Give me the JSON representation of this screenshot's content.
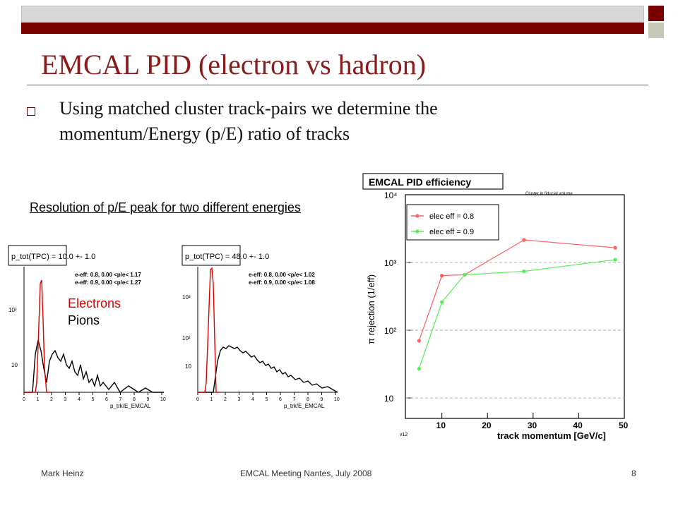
{
  "header": {
    "title": "EMCAL PID (electron vs hadron)",
    "bullet": "Using matched cluster track-pairs we determine the momentum/Energy (p/E) ratio of tracks",
    "colors": {
      "dark_band": "#7a0000",
      "light_band": "#d8d8d8",
      "title": "#8b1a1a"
    }
  },
  "left_panel": {
    "caption": "Resolution of p/E peak for two different energies",
    "legend": {
      "electrons": "Electrons",
      "pions": "Pions",
      "electron_color": "#e00000",
      "pion_color": "#000000"
    },
    "hist1": {
      "title": "p_tot(TPC) = 10.0 +- 1.0",
      "line1": "e-eff: 0.8, 0.00 <p/e< 1.17",
      "line2": "e-eff: 0.9, 0.00 <p/e< 1.27",
      "xlabel": "p_trk/E_EMCAL",
      "yticks": [
        "10²",
        "10"
      ],
      "xticks": [
        "0",
        "1",
        "2",
        "3",
        "4",
        "5",
        "6",
        "7",
        "8",
        "9",
        "10"
      ]
    },
    "hist2": {
      "title": "p_tot(TPC) = 48.0 +- 1.0",
      "line1": "e-eff: 0.8, 0.00 <p/e< 1.02",
      "line2": "e-eff: 0.9, 0.00 <p/e< 1.08",
      "xlabel": "p_trk/E_EMCAL",
      "yticks": [
        "10³",
        "10²",
        "10"
      ],
      "xticks": [
        "0",
        "1",
        "2",
        "3",
        "4",
        "5",
        "6",
        "7",
        "8",
        "9",
        "10"
      ]
    }
  },
  "chart_data": {
    "type": "line",
    "title": "EMCAL PID efficiency",
    "subtitle": "Cluster in fiducial volume",
    "xlabel": "track momentum [GeV/c]",
    "ylabel": "π rejection (1/eff)",
    "corner_label": "v12",
    "xlim": [
      2,
      50
    ],
    "ylim": [
      5,
      10000
    ],
    "yscale": "log",
    "xticks": [
      10,
      20,
      30,
      40,
      50
    ],
    "yticks": [
      "10⁴",
      "10³",
      "10²",
      "10"
    ],
    "legend_position": "top-left",
    "series": [
      {
        "name": "elec eff = 0.8",
        "color": "#ff6060",
        "x": [
          5,
          10,
          15,
          28,
          48
        ],
        "y": [
          70,
          640,
          660,
          2150,
          1650
        ]
      },
      {
        "name": "elec eff = 0.9",
        "color": "#55ee55",
        "x": [
          5,
          10,
          15,
          28,
          48
        ],
        "y": [
          27,
          260,
          660,
          740,
          1100
        ]
      }
    ]
  },
  "footer": {
    "author": "Mark Heinz",
    "meeting": "EMCAL Meeting Nantes, July 2008",
    "page": "8"
  }
}
